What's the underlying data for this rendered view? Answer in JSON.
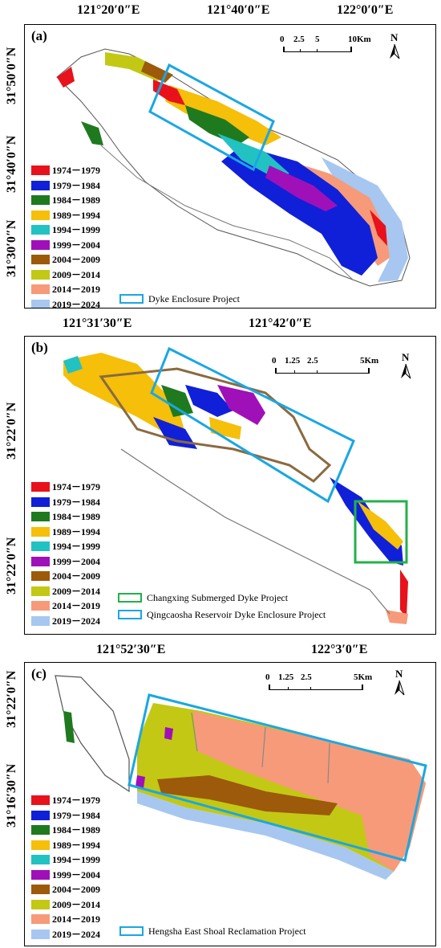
{
  "panels": [
    {
      "label": "(a)",
      "lon_ticks": [
        "121°20′0″E",
        "121°40′0″E",
        "122°0′0″E"
      ],
      "lat_ticks": [
        "31°50′0″N",
        "31°40′0″N",
        "31°30′0″N"
      ],
      "scale_numbers": [
        "0",
        "2.5",
        "5",
        "10Km"
      ],
      "north": "N",
      "projects": [
        "Dyke Enclosure Project"
      ]
    },
    {
      "label": "(b)",
      "lon_ticks": [
        "121°31′30″E",
        "121°42′0″E"
      ],
      "lat_ticks": [
        "31°22′0″N",
        "31°22′0″N"
      ],
      "scale_numbers": [
        "0",
        "1.25",
        "2.5",
        "5Km"
      ],
      "north": "N",
      "projects": [
        "Changxing Submerged Dyke Project",
        "Qingcaosha Reservoir Dyke Enclosure Project"
      ]
    },
    {
      "label": "(c)",
      "lon_ticks": [
        "121°52′30″E",
        "122°3′0″E"
      ],
      "lat_ticks": [
        "31°22′0″N",
        "31°16′30″N"
      ],
      "scale_numbers": [
        "0",
        "1.25",
        "2.5",
        "5Km"
      ],
      "north": "N",
      "projects": [
        "Hengsha East Shoal Reclamation Project"
      ]
    }
  ],
  "legend": [
    {
      "period": "1974－1979",
      "color": "#e8121c"
    },
    {
      "period": "1979－1984",
      "color": "#1020d8"
    },
    {
      "period": "1984－1989",
      "color": "#1f7a1f"
    },
    {
      "period": "1989－1994",
      "color": "#f5bf0a"
    },
    {
      "period": "1994－1999",
      "color": "#22c2c2"
    },
    {
      "period": "1999－2004",
      "color": "#a010b8"
    },
    {
      "period": "2004－2009",
      "color": "#9c5a0a"
    },
    {
      "period": "2009－2014",
      "color": "#c3c814"
    },
    {
      "period": "2014－2019",
      "color": "#f79a7a"
    },
    {
      "period": "2019－2024",
      "color": "#a7c7f0"
    }
  ],
  "project_colors": {
    "blue": "#1aa7e2",
    "green": "#24b04a"
  }
}
